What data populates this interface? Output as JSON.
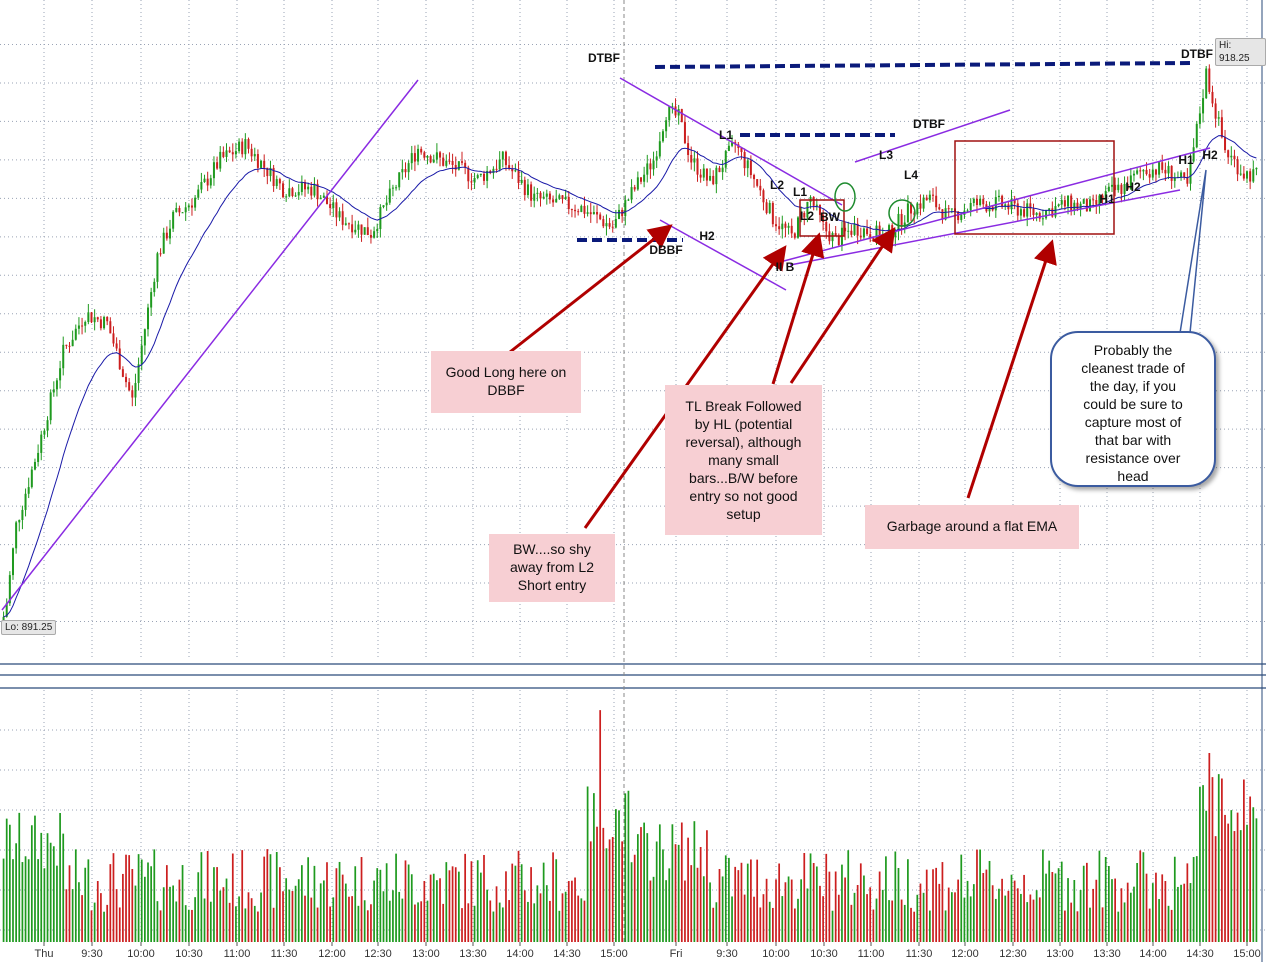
{
  "chart_data": {
    "type": "candlestick",
    "price_range": [
      887,
      921
    ],
    "hi_label": "Hi: 918.25",
    "lo_label": "Lo: 891.25",
    "x_tick_labels": [
      "Thu",
      "9:30",
      "10:00",
      "10:30",
      "11:00",
      "11:30",
      "12:00",
      "12:30",
      "13:00",
      "13:30",
      "14:00",
      "14:30",
      "15:00",
      "Fri",
      "9:30",
      "10:00",
      "10:30",
      "11:00",
      "11:30",
      "12:00",
      "12:30",
      "13:00",
      "13:30",
      "14:00",
      "14:30",
      "15:00"
    ],
    "bar_labels": [
      "DTBF",
      "L1",
      "DTBF",
      "L2",
      "L1",
      "L2",
      "BW",
      "L3",
      "L4",
      "H2",
      "DBBF",
      "II B",
      "H1",
      "H2",
      "H1",
      "H2",
      "DTBF"
    ],
    "annotations": {
      "good_long": "Good Long here on\nDBBF",
      "bw_shy": "BW....so shy\naway from L2\nShort entry",
      "tl_break": "TL Break Followed\nby HL (potential\nreversal), although\nmany small\nbars...B/W before\nentry so not good\nsetup",
      "garbage": "Garbage around a flat EMA",
      "cleanest": "Probably the\ncleanest trade of\nthe day, if you\ncould be sure to\ncapture most of\nthat bar with\nresistance over\nhead"
    },
    "colors": {
      "up": "#1f9a1f",
      "down": "#cc1f1f",
      "ema": "#1a1aa8",
      "trendline": "#8a2be2",
      "dashed_level": "#0a1a7a",
      "arrow": "#b00000",
      "box": "#a01010",
      "circle": "#1e8b2e"
    }
  }
}
